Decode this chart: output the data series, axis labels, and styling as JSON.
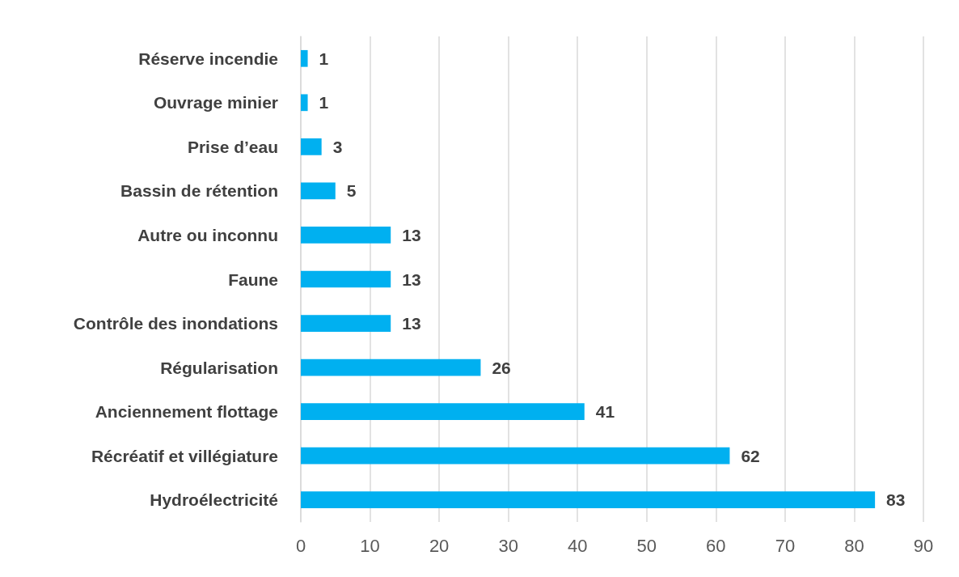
{
  "chart_data": {
    "type": "bar",
    "orientation": "horizontal",
    "categories": [
      "Réserve incendie",
      "Ouvrage minier",
      "Prise d’eau",
      "Bassin de rétention",
      "Autre ou inconnu",
      "Faune",
      "Contrôle des inondations",
      "Régularisation",
      "Anciennement flottage",
      "Récréatif et villégiature",
      "Hydroélectricité"
    ],
    "values": [
      1,
      1,
      3,
      5,
      13,
      13,
      13,
      26,
      41,
      62,
      83
    ],
    "color": "#00b0f0",
    "xlim": [
      0,
      90
    ],
    "xticks": [
      0,
      10,
      20,
      30,
      40,
      50,
      60,
      70,
      80,
      90
    ],
    "grid": "x",
    "data_labels": true
  }
}
